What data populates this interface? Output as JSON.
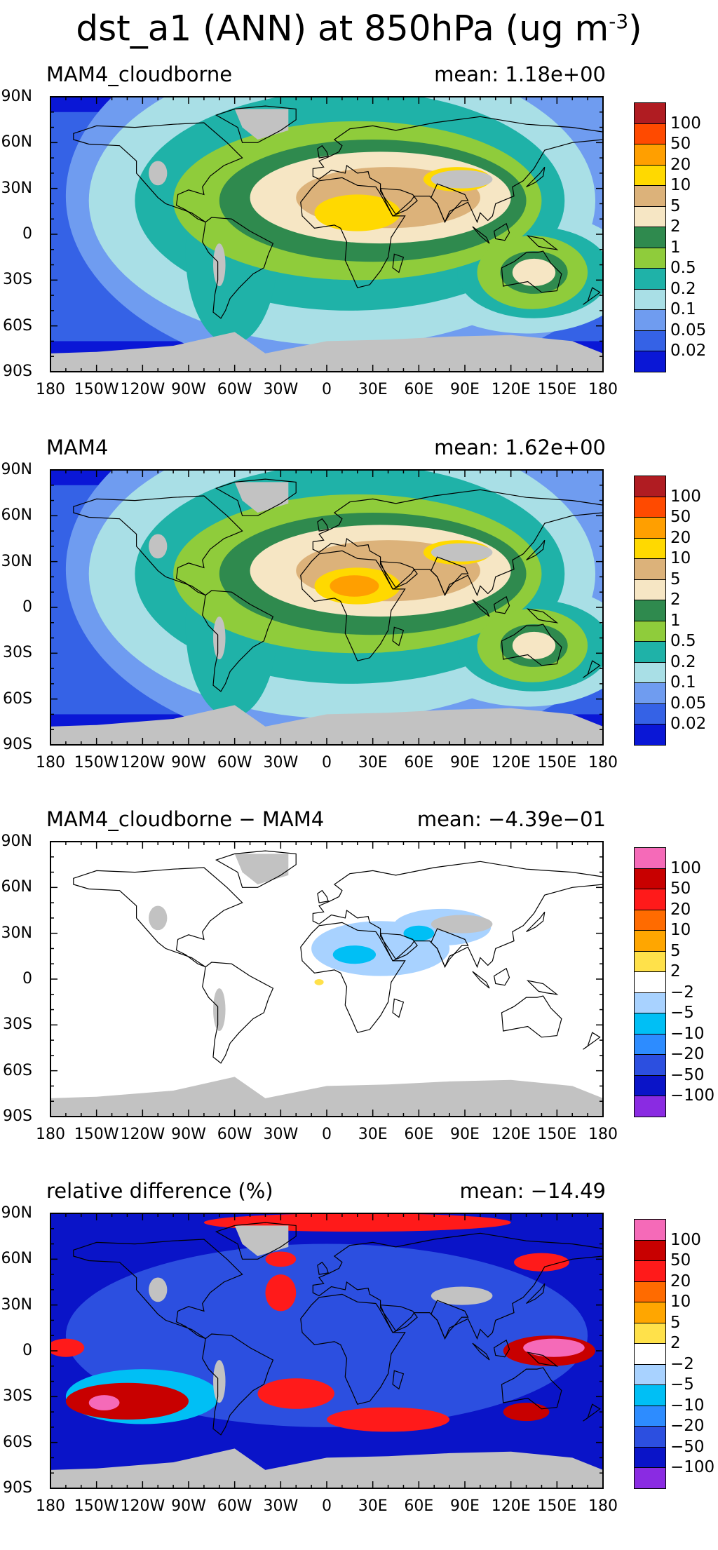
{
  "title": {
    "main": "dst_a1 (ANN) at 850hPa (ug m",
    "sup": "-3",
    "close": ")"
  },
  "axes": {
    "lat_labels": [
      "90N",
      "60N",
      "30N",
      "0",
      "30S",
      "60S",
      "90S"
    ],
    "lon_labels": [
      "180",
      "150W",
      "120W",
      "90W",
      "60W",
      "30W",
      "0",
      "30E",
      "60E",
      "90E",
      "120E",
      "150E",
      "180"
    ]
  },
  "legends": {
    "abs": {
      "labels": [
        "100",
        "50",
        "20",
        "10",
        "5",
        "2",
        "1",
        "0.5",
        "0.2",
        "0.1",
        "0.05",
        "0.02"
      ],
      "colors": [
        "#b01c22",
        "#ff4a00",
        "#ff9f00",
        "#ffd900",
        "#dcb27a",
        "#f6e6c4",
        "#2f8a4e",
        "#8fcc3b",
        "#1fb2a8",
        "#a9dfe6",
        "#6f9cf0",
        "#3562e6",
        "#0a17d6"
      ]
    },
    "diff": {
      "labels": [
        "100",
        "50",
        "20",
        "10",
        "5",
        "2",
        "−2",
        "−5",
        "−10",
        "−20",
        "−50",
        "−100"
      ],
      "colors": [
        "#f56ab8",
        "#c80000",
        "#ff1a1a",
        "#ff6b00",
        "#ffa600",
        "#ffe14a",
        "#ffffff",
        "#a8d2ff",
        "#00bff5",
        "#2d8cff",
        "#2c4fe0",
        "#0a14c8",
        "#8a2be2"
      ]
    }
  },
  "panels": [
    {
      "label": "MAM4_cloudborne",
      "mean_text": "mean:  1.18e+00",
      "kind": "abs"
    },
    {
      "label": "MAM4",
      "mean_text": "mean:  1.62e+00",
      "kind": "abs"
    },
    {
      "label": "MAM4_cloudborne − MAM4",
      "mean_text": "mean:  −4.39e−01",
      "kind": "diff"
    },
    {
      "label": "relative difference (%)",
      "mean_text": "mean:  −14.49",
      "kind": "rel"
    }
  ]
}
